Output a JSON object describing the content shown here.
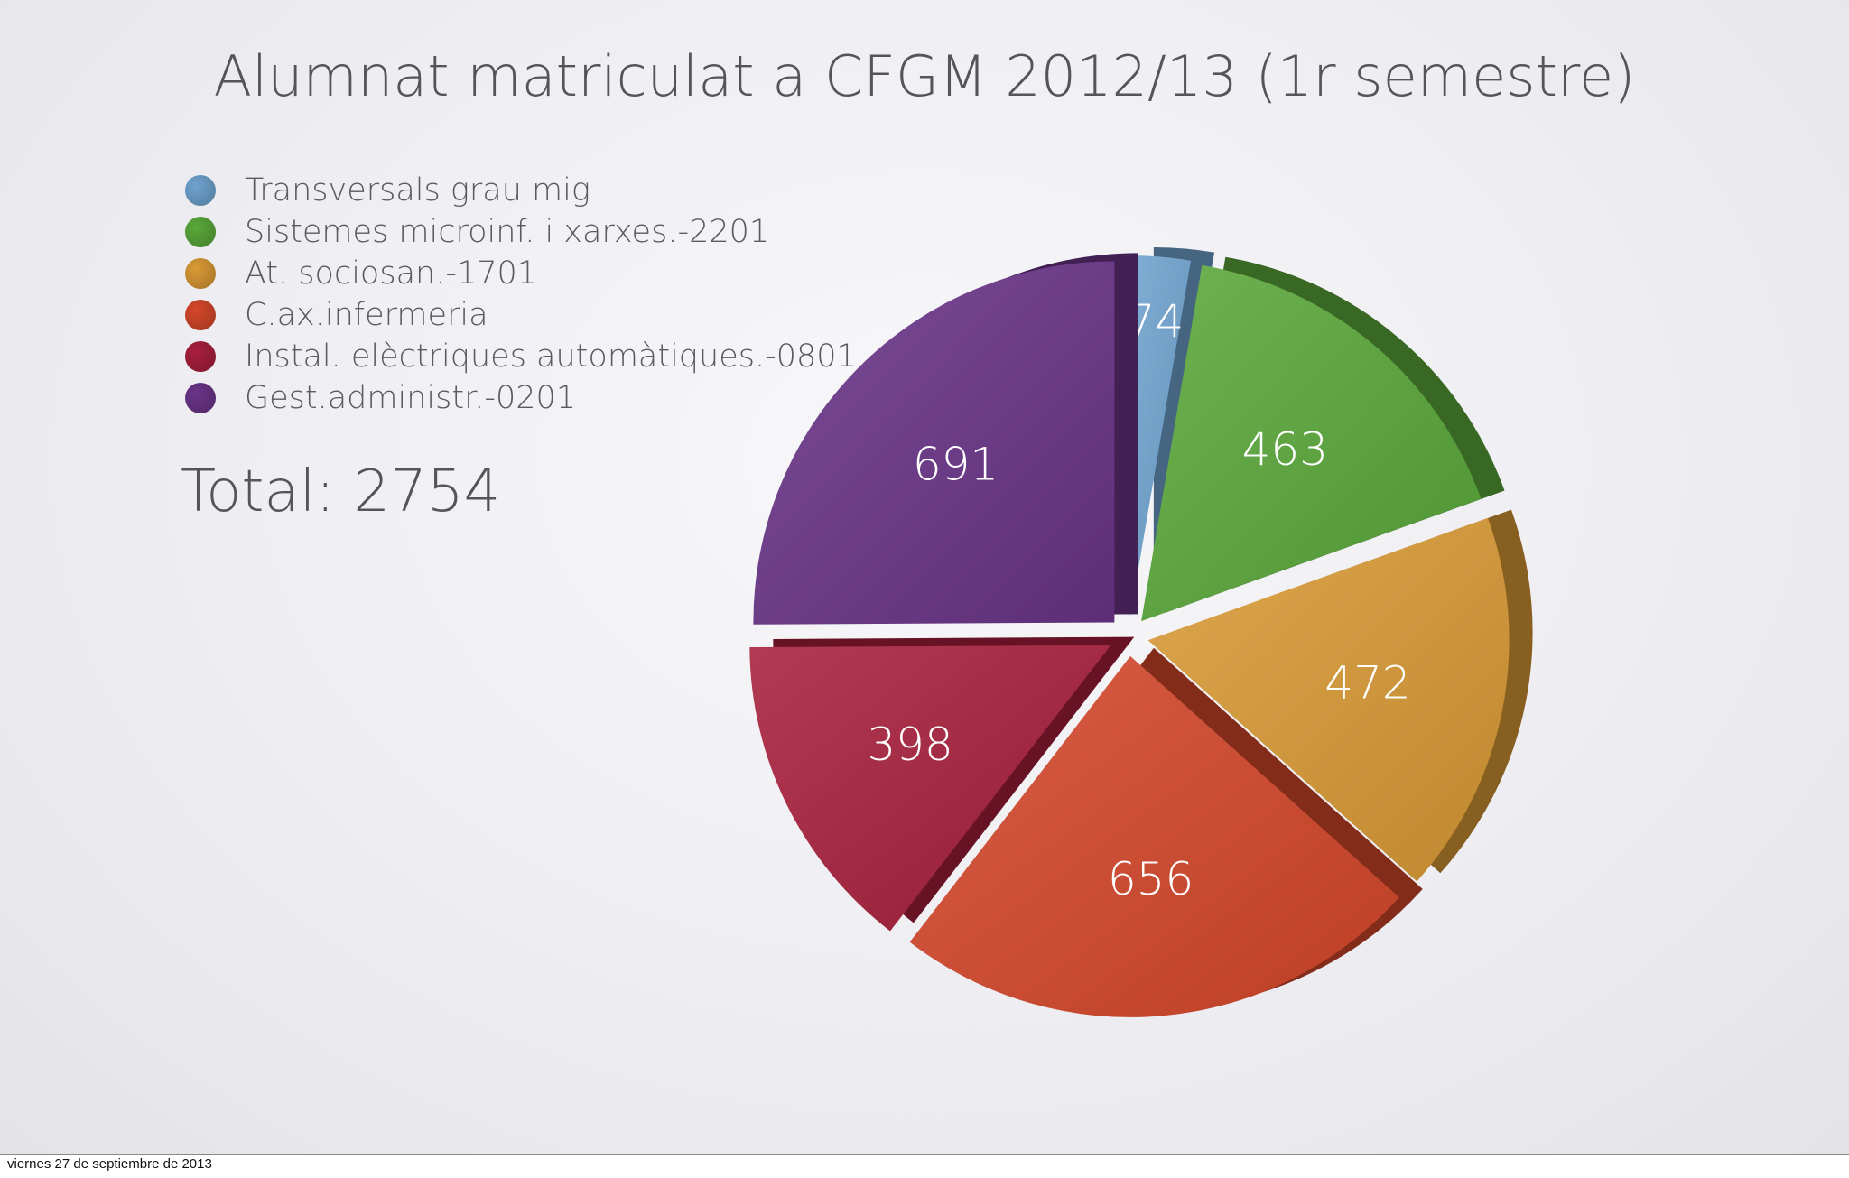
{
  "slide": {
    "title": "Alumnat matriculat a CFGM 2012/13 (1r semestre)",
    "total_label": "Total: 2754",
    "footer_date": "viernes 27 de septiembre de 2013"
  },
  "chart_data": {
    "type": "pie",
    "title": "Alumnat matriculat a CFGM 2012/13 (1r semestre)",
    "total": 2754,
    "legend_position": "top-left",
    "slices": [
      {
        "label": "Transversals grau mig",
        "value": 74,
        "color": "#6fa3cf"
      },
      {
        "label": "Sistemes microinf. i xarxes.-2201",
        "value": 463,
        "color": "#5aa83a"
      },
      {
        "label": "At. sociosan.-1701",
        "value": 472,
        "color": "#d99a35"
      },
      {
        "label": "C.ax.infermeria",
        "value": 656,
        "color": "#d4472a"
      },
      {
        "label": "Instal. elèctriques automàtiques.-0801",
        "value": 398,
        "color": "#a81f3c"
      },
      {
        "label": "Gest.administr.-0201",
        "value": 691,
        "color": "#6a3488"
      }
    ]
  }
}
